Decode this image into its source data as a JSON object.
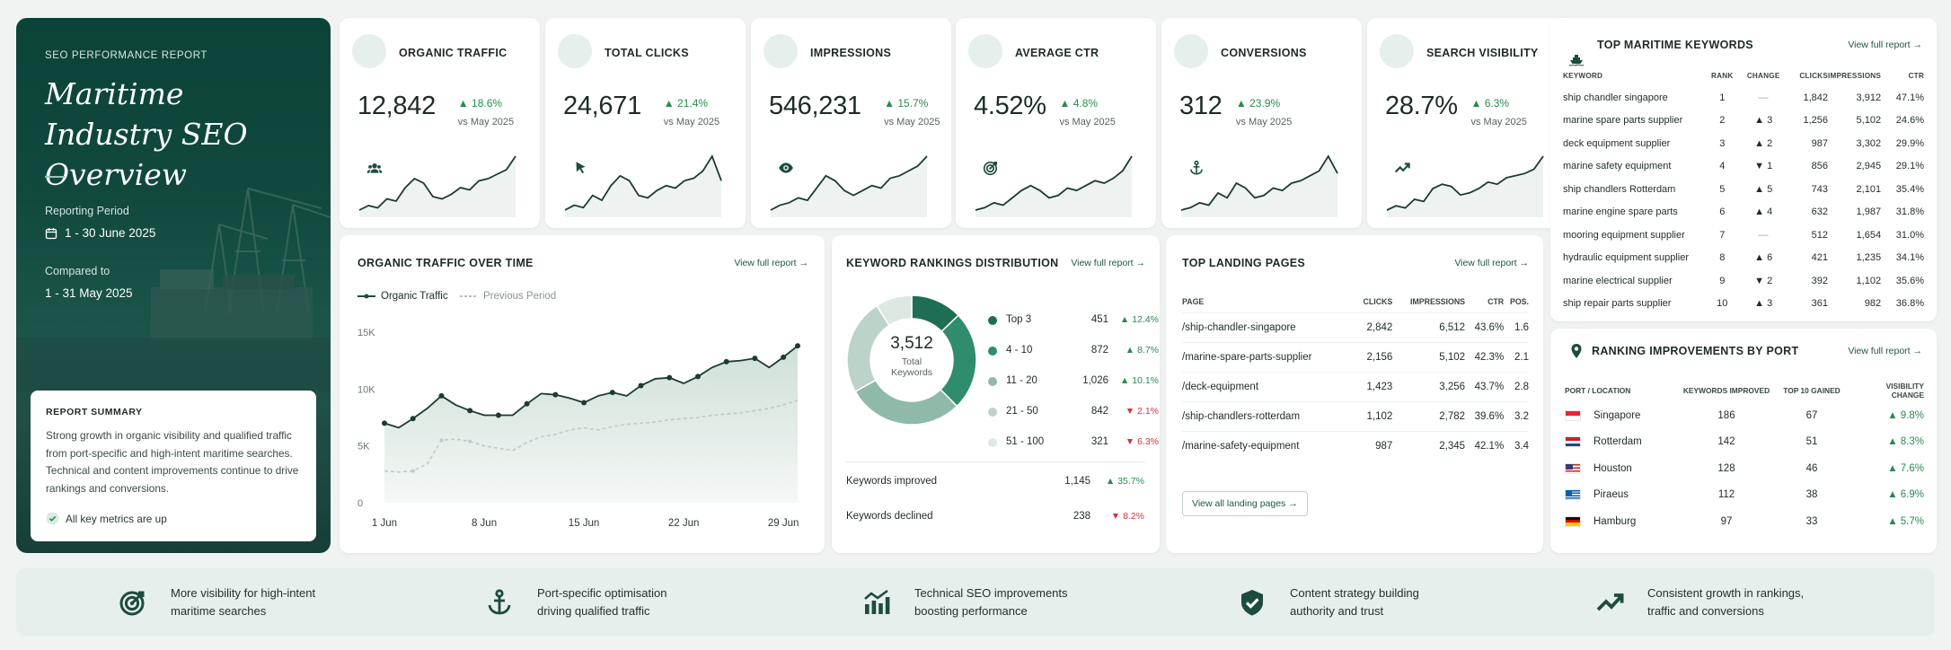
{
  "hero": {
    "eyebrow": "SEO PERFORMANCE REPORT",
    "title": "Maritime Industry SEO Overview",
    "period_label": "Reporting Period",
    "period_value": "1 - 30 June 2025",
    "compared_label": "Compared to",
    "compared_value": "1 - 31 May 2025",
    "summary_title": "REPORT SUMMARY",
    "summary_text": "Strong growth in organic visibility and qualified traffic from port-specific and high-intent maritime searches. Technical and content improvements continue to drive rankings and conversions.",
    "summary_check": "All key metrics are up"
  },
  "kpis": [
    {
      "name": "ORGANIC TRAFFIC",
      "value": "12,842",
      "delta": "18.6%",
      "vs": "vs May 2025",
      "icon": "users-icon",
      "spark": [
        12,
        14,
        13,
        17,
        16,
        22,
        26,
        24,
        18,
        17,
        19,
        22,
        21,
        25,
        26,
        28,
        30,
        36
      ]
    },
    {
      "name": "TOTAL CLICKS",
      "value": "24,671",
      "delta": "21.4%",
      "vs": "vs May 2025",
      "icon": "cursor-icon",
      "spark": [
        14,
        16,
        15,
        20,
        18,
        24,
        28,
        26,
        20,
        19,
        22,
        24,
        23,
        26,
        27,
        30,
        36,
        26
      ]
    },
    {
      "name": "IMPRESSIONS",
      "value": "546,231",
      "delta": "15.7%",
      "vs": "vs May 2025",
      "icon": "eye-icon",
      "spark": [
        13,
        15,
        16,
        18,
        17,
        22,
        27,
        25,
        21,
        19,
        21,
        23,
        22,
        26,
        27,
        29,
        31,
        35
      ]
    },
    {
      "name": "AVERAGE CTR",
      "value": "4.52%",
      "delta": "4.8%",
      "vs": "vs May 2025",
      "icon": "target-icon",
      "spark": [
        14,
        15,
        17,
        16,
        19,
        22,
        24,
        22,
        19,
        20,
        23,
        22,
        24,
        26,
        25,
        27,
        30,
        36
      ]
    },
    {
      "name": "CONVERSIONS",
      "value": "312",
      "delta": "23.9%",
      "vs": "vs May 2025",
      "icon": "anchor-icon",
      "spark": [
        13,
        14,
        16,
        15,
        20,
        18,
        24,
        22,
        18,
        19,
        22,
        21,
        24,
        25,
        27,
        29,
        35,
        28
      ]
    },
    {
      "name": "SEARCH VISIBILITY",
      "value": "28.7%",
      "delta": "6.3%",
      "vs": "vs May 2025",
      "icon": "trend-up-icon",
      "spark": [
        12,
        14,
        13,
        17,
        16,
        22,
        24,
        23,
        19,
        20,
        22,
        25,
        24,
        27,
        28,
        29,
        31,
        37
      ]
    }
  ],
  "organic_chart": {
    "title": "ORGANIC TRAFFIC OVER TIME",
    "view": "View full report →",
    "legend_current": "Organic Traffic",
    "legend_previous": "Previous Period"
  },
  "chart_data": {
    "type": "line",
    "categories": [
      "1 Jun",
      "8 Jun",
      "15 Jun",
      "22 Jun",
      "29 Jun"
    ],
    "x": [
      1,
      2,
      3,
      4,
      5,
      6,
      7,
      8,
      9,
      10,
      11,
      12,
      13,
      14,
      15,
      16,
      17,
      18,
      19,
      20,
      21,
      22,
      23,
      24,
      25,
      26,
      27,
      28,
      29,
      30
    ],
    "ylim": [
      0,
      15000
    ],
    "yticks": [
      "0",
      "5K",
      "10K",
      "15K"
    ],
    "series": [
      {
        "name": "Organic Traffic",
        "values": [
          7000,
          6600,
          7400,
          8300,
          9400,
          8600,
          8100,
          7700,
          7700,
          7700,
          8700,
          9600,
          9500,
          9200,
          8800,
          9400,
          9700,
          9400,
          10300,
          10900,
          11000,
          10500,
          11100,
          11900,
          12400,
          12500,
          12700,
          11900,
          12800,
          13800
        ]
      },
      {
        "name": "Previous Period",
        "values": [
          2800,
          2700,
          2800,
          3400,
          5500,
          5600,
          5400,
          5000,
          4800,
          4600,
          5300,
          5800,
          6000,
          6400,
          6600,
          6400,
          6700,
          6900,
          7000,
          7100,
          7300,
          7400,
          7500,
          7700,
          7800,
          7900,
          8100,
          8300,
          8600,
          9000
        ]
      }
    ]
  },
  "dist": {
    "title": "KEYWORD RANKINGS DISTRIBUTION",
    "view": "View full report →",
    "total": "3,512",
    "total_label1": "Total",
    "total_label2": "Keywords",
    "rows": [
      {
        "name": "Top 3",
        "value": "451",
        "pct": "12.4%",
        "dir": "up",
        "color": "#1e6e55"
      },
      {
        "name": "4 - 10",
        "value": "872",
        "pct": "8.7%",
        "dir": "up",
        "color": "#2f8c6c"
      },
      {
        "name": "11 - 20",
        "value": "1,026",
        "pct": "10.1%",
        "dir": "up",
        "color": "#8fb9a8"
      },
      {
        "name": "21 - 50",
        "value": "842",
        "pct": "2.1%",
        "dir": "down",
        "color": "#bcd3ca"
      },
      {
        "name": "51 - 100",
        "value": "321",
        "pct": "6.3%",
        "dir": "down",
        "color": "#dde8e3"
      }
    ],
    "improved_label": "Keywords improved",
    "improved_value": "1,145",
    "improved_pct": "35.7%",
    "declined_label": "Keywords declined",
    "declined_value": "238",
    "declined_pct": "8.2%"
  },
  "landing": {
    "title": "TOP LANDING PAGES",
    "view": "View full report →",
    "headers": [
      "PAGE",
      "CLICKS",
      "IMPRESSIONS",
      "CTR",
      "POS."
    ],
    "rows": [
      [
        "/ship-chandler-singapore",
        "2,842",
        "6,512",
        "43.6%",
        "1.6"
      ],
      [
        "/marine-spare-parts-supplier",
        "2,156",
        "5,102",
        "42.3%",
        "2.1"
      ],
      [
        "/deck-equipment",
        "1,423",
        "3,256",
        "43.7%",
        "2.8"
      ],
      [
        "/ship-chandlers-rotterdam",
        "1,102",
        "2,782",
        "39.6%",
        "3.2"
      ],
      [
        "/marine-safety-equipment",
        "987",
        "2,345",
        "42.1%",
        "3.4"
      ]
    ],
    "button": "View all landing pages →"
  },
  "keywords": {
    "title": "TOP MARITIME KEYWORDS",
    "view": "View full report →",
    "headers": [
      "KEYWORD",
      "RANK",
      "CHANGE",
      "CLICKS",
      "IMPRESSIONS",
      "CTR"
    ],
    "rows": [
      {
        "kw": "ship chandler singapore",
        "rank": "1",
        "dir": "none",
        "chg": "—",
        "clicks": "1,842",
        "imp": "3,912",
        "ctr": "47.1%"
      },
      {
        "kw": "marine spare parts supplier",
        "rank": "2",
        "dir": "up",
        "chg": "3",
        "clicks": "1,256",
        "imp": "5,102",
        "ctr": "24.6%"
      },
      {
        "kw": "deck equipment supplier",
        "rank": "3",
        "dir": "up",
        "chg": "2",
        "clicks": "987",
        "imp": "3,302",
        "ctr": "29.9%"
      },
      {
        "kw": "marine safety equipment",
        "rank": "4",
        "dir": "down",
        "chg": "1",
        "clicks": "856",
        "imp": "2,945",
        "ctr": "29.1%"
      },
      {
        "kw": "ship chandlers Rotterdam",
        "rank": "5",
        "dir": "up",
        "chg": "5",
        "clicks": "743",
        "imp": "2,101",
        "ctr": "35.4%"
      },
      {
        "kw": "marine engine spare parts",
        "rank": "6",
        "dir": "up",
        "chg": "4",
        "clicks": "632",
        "imp": "1,987",
        "ctr": "31.8%"
      },
      {
        "kw": "mooring equipment supplier",
        "rank": "7",
        "dir": "none",
        "chg": "—",
        "clicks": "512",
        "imp": "1,654",
        "ctr": "31.0%"
      },
      {
        "kw": "hydraulic equipment supplier",
        "rank": "8",
        "dir": "up",
        "chg": "6",
        "clicks": "421",
        "imp": "1,235",
        "ctr": "34.1%"
      },
      {
        "kw": "marine electrical supplier",
        "rank": "9",
        "dir": "down",
        "chg": "2",
        "clicks": "392",
        "imp": "1,102",
        "ctr": "35.6%"
      },
      {
        "kw": "ship repair parts supplier",
        "rank": "10",
        "dir": "up",
        "chg": "3",
        "clicks": "361",
        "imp": "982",
        "ctr": "36.8%"
      }
    ]
  },
  "ports": {
    "title": "RANKING IMPROVEMENTS BY PORT",
    "view": "View full report →",
    "headers": [
      "PORT / LOCATION",
      "KEYWORDS IMPROVED",
      "TOP 10 GAINED",
      "VISIBILITY CHANGE"
    ],
    "rows": [
      {
        "port": "Singapore",
        "flag": "sg",
        "kw": "186",
        "top": "67",
        "vis": "9.8%"
      },
      {
        "port": "Rotterdam",
        "flag": "nl",
        "kw": "142",
        "top": "51",
        "vis": "8.3%"
      },
      {
        "port": "Houston",
        "flag": "us",
        "kw": "128",
        "top": "46",
        "vis": "7.6%"
      },
      {
        "port": "Piraeus",
        "flag": "gr",
        "kw": "112",
        "top": "38",
        "vis": "6.9%"
      },
      {
        "port": "Hamburg",
        "flag": "de",
        "kw": "97",
        "top": "33",
        "vis": "5.7%"
      }
    ]
  },
  "footer": [
    {
      "icon": "target-icon",
      "l1": "More visibility for high-intent",
      "l2": "maritime searches"
    },
    {
      "icon": "anchor-icon",
      "l1": "Port-specific optimisation",
      "l2": "driving qualified traffic"
    },
    {
      "icon": "bar-chart-icon",
      "l1": "Technical SEO improvements",
      "l2": "boosting performance"
    },
    {
      "icon": "shield-check-icon",
      "l1": "Content strategy building",
      "l2": "authority and trust"
    },
    {
      "icon": "trend-up-icon",
      "l1": "Consistent growth in rankings,",
      "l2": "traffic and conversions"
    }
  ]
}
